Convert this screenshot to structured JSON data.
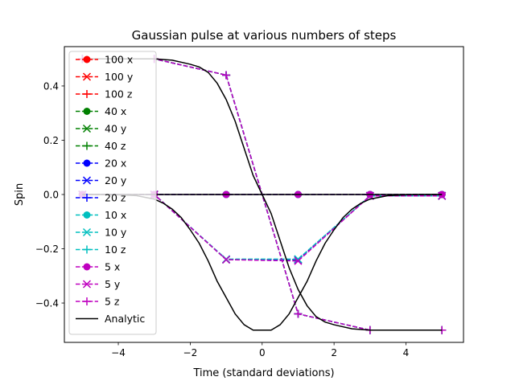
{
  "chart_data": {
    "type": "line",
    "title": "Gaussian pulse at various numbers of steps",
    "xlabel": "Time (standard deviations)",
    "ylabel": "Spin",
    "xlim": [
      -5.5,
      5.6
    ],
    "ylim": [
      -0.545,
      0.545
    ],
    "xticks": [
      -4,
      -2,
      0,
      2,
      4
    ],
    "xtick_labels": [
      "−4",
      "−2",
      "0",
      "2",
      "4"
    ],
    "yticks": [
      -0.4,
      -0.2,
      0.0,
      0.2,
      0.4
    ],
    "ytick_labels": [
      "−0.4",
      "−0.2",
      "0.0",
      "0.2",
      "0.4"
    ],
    "grid": false,
    "legend_position": "upper-left",
    "series": [
      {
        "name": "100 x",
        "color": "#ff0000",
        "marker": "circle",
        "dashed": true,
        "x": [
          -5,
          -3,
          -1,
          1,
          3,
          5
        ],
        "y": [
          0,
          0,
          0,
          0,
          0,
          0
        ]
      },
      {
        "name": "100 y",
        "color": "#ff0000",
        "marker": "x",
        "dashed": true,
        "x": [
          -5,
          -3,
          -1,
          1,
          3,
          5
        ],
        "y": [
          0,
          0,
          -0.24,
          -0.24,
          -0.005,
          -0.005
        ]
      },
      {
        "name": "100 z",
        "color": "#ff0000",
        "marker": "plus",
        "dashed": true,
        "x": [
          -5,
          -3,
          -1,
          1,
          3,
          5
        ],
        "y": [
          0.5,
          0.5,
          0.44,
          -0.44,
          -0.5,
          -0.5
        ]
      },
      {
        "name": "40 x",
        "color": "#008000",
        "marker": "circle",
        "dashed": true,
        "x": [
          -5,
          -3,
          -1,
          1,
          3,
          5
        ],
        "y": [
          0,
          0,
          0,
          0,
          0,
          0
        ]
      },
      {
        "name": "40 y",
        "color": "#008000",
        "marker": "x",
        "dashed": true,
        "x": [
          -5,
          -3,
          -1,
          1,
          3,
          5
        ],
        "y": [
          0,
          0,
          -0.24,
          -0.24,
          -0.005,
          -0.005
        ]
      },
      {
        "name": "40 z",
        "color": "#008000",
        "marker": "plus",
        "dashed": true,
        "x": [
          -5,
          -3,
          -1,
          1,
          3,
          5
        ],
        "y": [
          0.5,
          0.5,
          0.44,
          -0.44,
          -0.5,
          -0.5
        ]
      },
      {
        "name": "20 x",
        "color": "#0000ff",
        "marker": "circle",
        "dashed": true,
        "x": [
          -5,
          -3,
          -1,
          1,
          3,
          5
        ],
        "y": [
          0,
          0,
          0,
          0,
          0,
          0
        ]
      },
      {
        "name": "20 y",
        "color": "#0000ff",
        "marker": "x",
        "dashed": true,
        "x": [
          -5,
          -3,
          -1,
          1,
          3,
          5
        ],
        "y": [
          0,
          0,
          -0.24,
          -0.24,
          -0.005,
          -0.005
        ]
      },
      {
        "name": "20 z",
        "color": "#0000ff",
        "marker": "plus",
        "dashed": true,
        "x": [
          -5,
          -3,
          -1,
          1,
          3,
          5
        ],
        "y": [
          0.5,
          0.5,
          0.44,
          -0.44,
          -0.5,
          -0.5
        ]
      },
      {
        "name": "10 x",
        "color": "#00bfbf",
        "marker": "circle",
        "dashed": true,
        "x": [
          -5,
          -3,
          -1,
          1,
          3,
          5
        ],
        "y": [
          0,
          0,
          0,
          0,
          0,
          0
        ]
      },
      {
        "name": "10 y",
        "color": "#00bfbf",
        "marker": "x",
        "dashed": true,
        "x": [
          -5,
          -3,
          -1,
          1,
          3,
          5
        ],
        "y": [
          0,
          0,
          -0.238,
          -0.238,
          -0.005,
          -0.005
        ]
      },
      {
        "name": "10 z",
        "color": "#00bfbf",
        "marker": "plus",
        "dashed": true,
        "x": [
          -5,
          -3,
          -1,
          1,
          3,
          5
        ],
        "y": [
          0.5,
          0.5,
          0.44,
          -0.44,
          -0.5,
          -0.5
        ]
      },
      {
        "name": "5 x",
        "color": "#bf00bf",
        "marker": "circle",
        "dashed": true,
        "x": [
          -5,
          -3,
          -1,
          1,
          3,
          5
        ],
        "y": [
          0,
          0,
          0,
          0,
          0,
          0
        ]
      },
      {
        "name": "5 y",
        "color": "#bf00bf",
        "marker": "x",
        "dashed": true,
        "x": [
          -5,
          -3,
          -1,
          1,
          3,
          5
        ],
        "y": [
          0,
          0,
          -0.24,
          -0.245,
          -0.005,
          -0.005
        ]
      },
      {
        "name": "5 z",
        "color": "#bf00bf",
        "marker": "plus",
        "dashed": true,
        "x": [
          -5,
          -3,
          -1,
          1,
          3,
          5
        ],
        "y": [
          0.5,
          0.5,
          0.44,
          -0.44,
          -0.5,
          -0.5
        ]
      },
      {
        "name": "Analytic",
        "color": "#000000",
        "marker": "none",
        "dashed": false,
        "x": [
          -5,
          -4.5,
          -4,
          -3.5,
          -3,
          -2.75,
          -2.5,
          -2.25,
          -2,
          -1.75,
          -1.5,
          -1.25,
          -1,
          -0.75,
          -0.5,
          -0.25,
          0,
          0.25,
          0.5,
          0.75,
          1,
          1.25,
          1.5,
          1.75,
          2,
          2.25,
          2.5,
          2.75,
          3,
          3.5,
          4,
          4.5,
          5
        ],
        "y": [
          0,
          0,
          -0.001,
          -0.004,
          -0.017,
          -0.032,
          -0.054,
          -0.085,
          -0.13,
          -0.18,
          -0.245,
          -0.32,
          -0.38,
          -0.44,
          -0.48,
          -0.5,
          -0.5,
          -0.5,
          -0.48,
          -0.44,
          -0.38,
          -0.32,
          -0.245,
          -0.18,
          -0.13,
          -0.085,
          -0.054,
          -0.032,
          -0.017,
          -0.004,
          -0.001,
          0,
          0
        ]
      },
      {
        "name": "Analytic",
        "color": "#000000",
        "marker": "none",
        "dashed": false,
        "x": [
          -5,
          -4,
          -3,
          -2.5,
          -2,
          -1.75,
          -1.5,
          -1.25,
          -1,
          -0.75,
          -0.5,
          -0.25,
          0,
          0.25,
          0.5,
          0.75,
          1,
          1.25,
          1.5,
          1.75,
          2,
          2.5,
          3,
          4,
          5
        ],
        "y": [
          0.5,
          0.5,
          0.5,
          0.495,
          0.48,
          0.47,
          0.45,
          0.41,
          0.35,
          0.27,
          0.17,
          0.07,
          0,
          -0.07,
          -0.17,
          -0.27,
          -0.35,
          -0.41,
          -0.45,
          -0.47,
          -0.48,
          -0.495,
          -0.5,
          -0.5,
          -0.5
        ]
      },
      {
        "name": "Analytic",
        "color": "#000000",
        "marker": "none",
        "dashed": false,
        "x": [
          -5,
          5
        ],
        "y": [
          0,
          0
        ]
      }
    ],
    "legend": [
      {
        "label": "100 x",
        "color": "#ff0000",
        "marker": "circle",
        "dashed": true
      },
      {
        "label": "100 y",
        "color": "#ff0000",
        "marker": "x",
        "dashed": true
      },
      {
        "label": "100 z",
        "color": "#ff0000",
        "marker": "plus",
        "dashed": true
      },
      {
        "label": "40 x",
        "color": "#008000",
        "marker": "circle",
        "dashed": true
      },
      {
        "label": "40 y",
        "color": "#008000",
        "marker": "x",
        "dashed": true
      },
      {
        "label": "40 z",
        "color": "#008000",
        "marker": "plus",
        "dashed": true
      },
      {
        "label": "20 x",
        "color": "#0000ff",
        "marker": "circle",
        "dashed": true
      },
      {
        "label": "20 y",
        "color": "#0000ff",
        "marker": "x",
        "dashed": true
      },
      {
        "label": "20 z",
        "color": "#0000ff",
        "marker": "plus",
        "dashed": true
      },
      {
        "label": "10 x",
        "color": "#00bfbf",
        "marker": "circle",
        "dashed": true
      },
      {
        "label": "10 y",
        "color": "#00bfbf",
        "marker": "x",
        "dashed": true
      },
      {
        "label": "10 z",
        "color": "#00bfbf",
        "marker": "plus",
        "dashed": true
      },
      {
        "label": "5 x",
        "color": "#bf00bf",
        "marker": "circle",
        "dashed": true
      },
      {
        "label": "5 y",
        "color": "#bf00bf",
        "marker": "x",
        "dashed": true
      },
      {
        "label": "5 z",
        "color": "#bf00bf",
        "marker": "plus",
        "dashed": true
      },
      {
        "label": "Analytic",
        "color": "#000000",
        "marker": "none",
        "dashed": false
      }
    ]
  }
}
